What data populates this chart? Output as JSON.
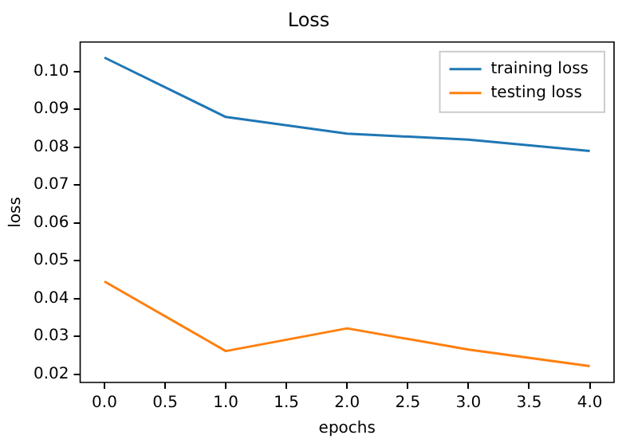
{
  "chart_data": {
    "type": "line",
    "title": "Loss",
    "xlabel": "epochs",
    "ylabel": "loss",
    "x": [
      0,
      1,
      2,
      3,
      4
    ],
    "series": [
      {
        "name": "training loss",
        "color": "#1f77b4",
        "values": [
          0.1037,
          0.088,
          0.0836,
          0.082,
          0.079
        ]
      },
      {
        "name": "testing loss",
        "color": "#ff7f0e",
        "values": [
          0.0445,
          0.0261,
          0.0321,
          0.0265,
          0.0221
        ]
      }
    ],
    "xlim": [
      -0.2,
      4.2
    ],
    "xticks": [
      {
        "value": 0,
        "label": "0.0"
      },
      {
        "value": 0.5,
        "label": "0.5"
      },
      {
        "value": 1,
        "label": "1.0"
      },
      {
        "value": 1.5,
        "label": "1.5"
      },
      {
        "value": 2,
        "label": "2.0"
      },
      {
        "value": 2.5,
        "label": "2.5"
      },
      {
        "value": 3,
        "label": "3.0"
      },
      {
        "value": 3.5,
        "label": "3.5"
      },
      {
        "value": 4,
        "label": "4.0"
      }
    ],
    "ylim": [
      0.0178,
      0.1078
    ],
    "yticks": [
      {
        "value": 0.02,
        "label": "0.02"
      },
      {
        "value": 0.03,
        "label": "0.03"
      },
      {
        "value": 0.04,
        "label": "0.04"
      },
      {
        "value": 0.05,
        "label": "0.05"
      },
      {
        "value": 0.06,
        "label": "0.06"
      },
      {
        "value": 0.07,
        "label": "0.07"
      },
      {
        "value": 0.08,
        "label": "0.08"
      },
      {
        "value": 0.09,
        "label": "0.09"
      },
      {
        "value": 0.1,
        "label": "0.10"
      }
    ],
    "legend": "top right",
    "grid": false,
    "marker": "none",
    "line_style": "solid"
  }
}
